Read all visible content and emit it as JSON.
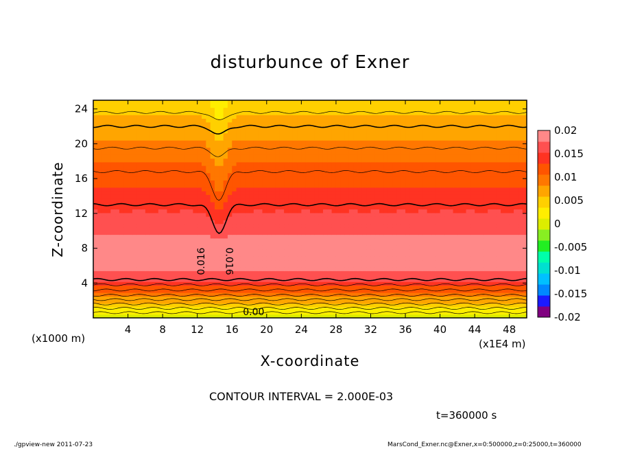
{
  "chart_data": {
    "type": "heatmap",
    "title": "disturbunce of Exner",
    "xlabel": "X-coordinate",
    "ylabel": "Z-coordinate",
    "x_unit_label": "(x1E4 m)",
    "y_unit_label": "(x1000 m)",
    "xlim": [
      0,
      50
    ],
    "ylim": [
      0,
      25
    ],
    "x_ticks": [
      4,
      8,
      12,
      16,
      20,
      24,
      28,
      32,
      36,
      40,
      44,
      48
    ],
    "y_ticks": [
      4,
      8,
      12,
      16,
      20,
      24
    ],
    "contour_interval_label": "CONTOUR INTERVAL = 2.000E-03",
    "contour_labels": [
      "0.016",
      "0.016",
      "0.00"
    ],
    "colorbar": {
      "min": -0.02,
      "max": 0.02,
      "tick_labels": [
        "0.02",
        "0.015",
        "0.01",
        "0.005",
        "0",
        "-0.005",
        "-0.01",
        "-0.015",
        "-0.02"
      ],
      "tick_values": [
        0.02,
        0.015,
        0.01,
        0.005,
        0,
        -0.005,
        -0.01,
        -0.015,
        -0.02
      ],
      "colors": [
        "#800080",
        "#1a1aff",
        "#0088ff",
        "#00c0ff",
        "#00e0d0",
        "#00ffaa",
        "#22ee22",
        "#88ee22",
        "#dded00",
        "#ffee00",
        "#ffd000",
        "#ffa500",
        "#ff7700",
        "#ff5500",
        "#ff3322",
        "#ff5050",
        "#ff8888"
      ]
    }
  },
  "annotations": {
    "time_label": "t=360000 s",
    "program_label": "./gpview-new   2011-07-23",
    "source_label": "MarsCond_Exner.nc@Exner,x=0:500000,z=0:25000,t=360000"
  }
}
